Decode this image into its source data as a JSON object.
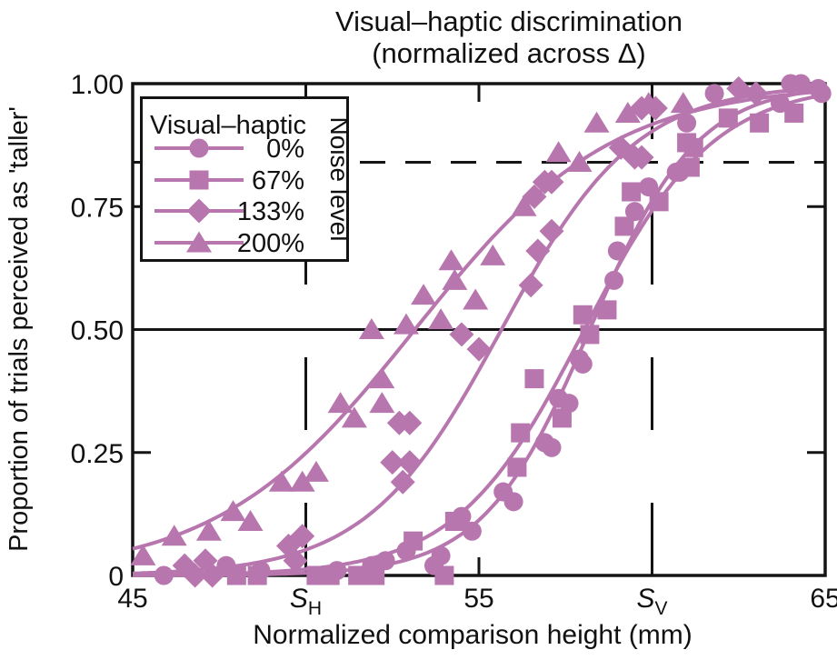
{
  "title": {
    "line1": "Visual–haptic discrimination",
    "line2": "(normalized across Δ)"
  },
  "axes": {
    "x": {
      "label": "Normalized comparison height (mm)",
      "min": 45,
      "max": 65,
      "ticks": [
        {
          "value": 45,
          "label": "45",
          "sub": ""
        },
        {
          "value": 50,
          "label": "S",
          "sub": "H"
        },
        {
          "value": 55,
          "label": "55",
          "sub": ""
        },
        {
          "value": 60,
          "label": "S",
          "sub": "V"
        },
        {
          "value": 65,
          "label": "65",
          "sub": ""
        }
      ]
    },
    "y": {
      "label": "Proportion of trials perceived as 'taller'",
      "min": 0,
      "max": 1,
      "ticks": [
        {
          "value": 0,
          "label": "0"
        },
        {
          "value": 0.25,
          "label": "0.25"
        },
        {
          "value": 0.5,
          "label": "0.50"
        },
        {
          "value": 0.75,
          "label": "0.75"
        },
        {
          "value": 1,
          "label": "1.00"
        }
      ]
    }
  },
  "legend": {
    "title": "Visual–haptic",
    "side_label": "Noise level",
    "entries": [
      {
        "label": "0%",
        "marker": "circle"
      },
      {
        "label": "67%",
        "marker": "square"
      },
      {
        "label": "133%",
        "marker": "diamond"
      },
      {
        "label": "200%",
        "marker": "triangle"
      }
    ]
  },
  "colors": {
    "series": "#b876ae",
    "axis": "#141414",
    "background": "#ffffff"
  },
  "chart_data": {
    "type": "scatter",
    "xlabel": "Normalized comparison height (mm)",
    "ylabel": "Proportion of trials perceived as 'taller'",
    "xlim": [
      45,
      65
    ],
    "ylim": [
      0,
      1
    ],
    "grid": false,
    "legend_position": "upper-left",
    "reference_lines": {
      "horizontal_solid_at_p": 0.5,
      "horizontal_dashed_at_p": 0.84,
      "vertical_dashed_at_mm": [
        50,
        60
      ],
      "vertical_dashed_labels": [
        "SH",
        "SV"
      ]
    },
    "series": [
      {
        "name": "200%",
        "marker": "triangle",
        "curve": {
          "model": "logistic",
          "pse_mm": 53.15,
          "slope_mm": 2.85
        },
        "points": [
          [
            45.3,
            0.04
          ],
          [
            46.2,
            0.08
          ],
          [
            47.2,
            0.09
          ],
          [
            47.9,
            0.13
          ],
          [
            48.4,
            0.11
          ],
          [
            49.3,
            0.19
          ],
          [
            49.9,
            0.19
          ],
          [
            50.3,
            0.21
          ],
          [
            51.0,
            0.35
          ],
          [
            51.4,
            0.32
          ],
          [
            51.9,
            0.5
          ],
          [
            52.2,
            0.4
          ],
          [
            52.2,
            0.35
          ],
          [
            52.9,
            0.51
          ],
          [
            53.4,
            0.57
          ],
          [
            53.9,
            0.52
          ],
          [
            54.2,
            0.64
          ],
          [
            54.3,
            0.6
          ],
          [
            54.9,
            0.56
          ],
          [
            55.4,
            0.65
          ],
          [
            56.3,
            0.75
          ],
          [
            57.3,
            0.86
          ],
          [
            57.9,
            0.84
          ],
          [
            58.4,
            0.92
          ],
          [
            59.3,
            0.94
          ],
          [
            59.9,
            0.96
          ],
          [
            60.9,
            0.96
          ]
        ]
      },
      {
        "name": "133%",
        "marker": "diamond",
        "curve": {
          "model": "logistic",
          "pse_mm": 55.65,
          "slope_mm": 1.95
        },
        "points": [
          [
            46.5,
            0.02
          ],
          [
            46.8,
            0.0
          ],
          [
            47.1,
            0.03
          ],
          [
            47.3,
            0.0
          ],
          [
            49.5,
            0.06
          ],
          [
            49.7,
            0.03
          ],
          [
            49.9,
            0.08
          ],
          [
            52.5,
            0.23
          ],
          [
            52.7,
            0.31
          ],
          [
            52.8,
            0.19
          ],
          [
            53.0,
            0.31
          ],
          [
            53.0,
            0.23
          ],
          [
            54.5,
            0.49
          ],
          [
            55.0,
            0.46
          ],
          [
            56.5,
            0.59
          ],
          [
            56.6,
            0.77
          ],
          [
            56.7,
            0.66
          ],
          [
            56.9,
            0.8
          ],
          [
            57.1,
            0.7
          ],
          [
            57.1,
            0.8
          ],
          [
            59.1,
            0.87
          ],
          [
            59.5,
            0.85
          ],
          [
            59.7,
            0.85
          ],
          [
            59.7,
            0.95
          ],
          [
            60.1,
            0.95
          ],
          [
            62.5,
            0.99
          ],
          [
            63.0,
            0.98
          ]
        ]
      },
      {
        "name": "67%",
        "marker": "square",
        "curve": {
          "model": "logistic",
          "pse_mm": 58.05,
          "slope_mm": 1.85
        },
        "points": [
          [
            48.0,
            0.0
          ],
          [
            48.6,
            0.0
          ],
          [
            50.3,
            0.0
          ],
          [
            50.7,
            0.0
          ],
          [
            51.5,
            0.0
          ],
          [
            52.0,
            0.0
          ],
          [
            53.1,
            0.07
          ],
          [
            54.0,
            0.0
          ],
          [
            54.3,
            0.11
          ],
          [
            56.1,
            0.22
          ],
          [
            56.2,
            0.29
          ],
          [
            56.6,
            0.4
          ],
          [
            57.4,
            0.32
          ],
          [
            58.0,
            0.53
          ],
          [
            58.2,
            0.49
          ],
          [
            58.7,
            0.54
          ],
          [
            59.2,
            0.71
          ],
          [
            59.4,
            0.78
          ],
          [
            60.2,
            0.76
          ],
          [
            61.0,
            0.88
          ],
          [
            61.1,
            0.83
          ],
          [
            61.2,
            0.87
          ],
          [
            62.2,
            0.93
          ],
          [
            63.1,
            0.92
          ],
          [
            64.1,
            0.94
          ]
        ]
      },
      {
        "name": "0%",
        "marker": "circle",
        "curve": {
          "model": "logistic",
          "pse_mm": 58.2,
          "slope_mm": 1.55
        },
        "points": [
          [
            45.9,
            0.0
          ],
          [
            47.7,
            0.02
          ],
          [
            48.7,
            0.01
          ],
          [
            50.9,
            0.01
          ],
          [
            51.9,
            0.02
          ],
          [
            52.3,
            0.03
          ],
          [
            52.9,
            0.05
          ],
          [
            53.7,
            0.02
          ],
          [
            53.9,
            0.04
          ],
          [
            54.5,
            0.12
          ],
          [
            54.8,
            0.09
          ],
          [
            55.7,
            0.17
          ],
          [
            56.0,
            0.15
          ],
          [
            56.9,
            0.27
          ],
          [
            57.1,
            0.26
          ],
          [
            57.3,
            0.36
          ],
          [
            57.6,
            0.35
          ],
          [
            57.9,
            0.44
          ],
          [
            58.0,
            0.43
          ],
          [
            58.9,
            0.6
          ],
          [
            59.0,
            0.66
          ],
          [
            59.5,
            0.74
          ],
          [
            59.9,
            0.79
          ],
          [
            60.7,
            0.82
          ],
          [
            60.8,
            0.82
          ],
          [
            61.0,
            0.92
          ],
          [
            61.8,
            0.98
          ],
          [
            63.7,
            0.96
          ],
          [
            64.0,
            1.0
          ],
          [
            64.3,
            1.0
          ],
          [
            64.8,
            0.99
          ],
          [
            64.9,
            0.98
          ]
        ]
      }
    ]
  }
}
